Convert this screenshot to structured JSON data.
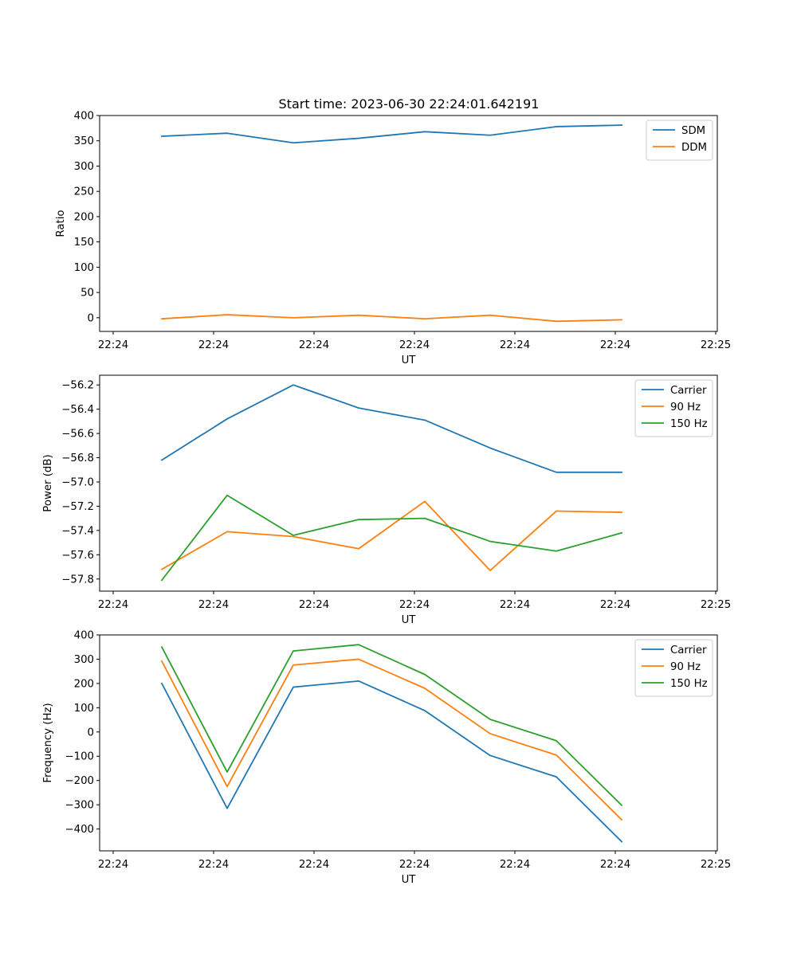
{
  "title": "Start time: 2023-06-30 22:24:01.642191",
  "chart_data": [
    {
      "type": "line",
      "ylabel": "Ratio",
      "xlabel": "UT",
      "x_tick_labels": [
        "22:24",
        "22:24",
        "22:24",
        "22:24",
        "22:24",
        "22:24",
        "22:24",
        "22:25"
      ],
      "ylim": [
        -27,
        400
      ],
      "yticks": [
        0,
        50,
        100,
        150,
        200,
        250,
        300,
        350,
        400
      ],
      "legend_position": "top-right",
      "series": [
        {
          "name": "SDM",
          "color": "#1f77b4",
          "values": [
            359,
            365,
            346,
            355,
            368,
            361,
            378,
            381
          ]
        },
        {
          "name": "DDM",
          "color": "#ff7f0e",
          "values": [
            -2,
            6,
            0,
            5,
            -2,
            5,
            -7,
            -4
          ]
        }
      ]
    },
    {
      "type": "line",
      "ylabel": "Power (dB)",
      "xlabel": "UT",
      "x_tick_labels": [
        "22:24",
        "22:24",
        "22:24",
        "22:24",
        "22:24",
        "22:24",
        "22:24",
        "22:25"
      ],
      "ylim": [
        -57.9,
        -56.12
      ],
      "yticks": [
        -57.8,
        -57.6,
        -57.4,
        -57.2,
        -57.0,
        -56.8,
        -56.6,
        -56.4,
        -56.2
      ],
      "ytick_labels": [
        "−57.8",
        "−57.6",
        "−57.4",
        "−57.2",
        "−57.0",
        "−56.8",
        "−56.6",
        "−56.4",
        "−56.2"
      ],
      "legend_position": "top-right",
      "series": [
        {
          "name": "Carrier",
          "color": "#1f77b4",
          "values": [
            -56.82,
            -56.48,
            -56.2,
            -56.39,
            -56.49,
            -56.72,
            -56.92,
            -56.92
          ]
        },
        {
          "name": "90 Hz",
          "color": "#ff7f0e",
          "values": [
            -57.72,
            -57.41,
            -57.45,
            -57.55,
            -57.16,
            -57.73,
            -57.24,
            -57.25
          ]
        },
        {
          "name": "150 Hz",
          "color": "#2ca02c",
          "values": [
            -57.81,
            -57.11,
            -57.44,
            -57.31,
            -57.3,
            -57.49,
            -57.57,
            -57.42
          ]
        }
      ]
    },
    {
      "type": "line",
      "ylabel": "Frequency (Hz)",
      "xlabel": "UT",
      "x_tick_labels": [
        "22:24",
        "22:24",
        "22:24",
        "22:24",
        "22:24",
        "22:24",
        "22:24",
        "22:25"
      ],
      "ylim": [
        -490,
        400
      ],
      "yticks": [
        -400,
        -300,
        -200,
        -100,
        0,
        100,
        200,
        300,
        400
      ],
      "ytick_labels": [
        "−400",
        "−300",
        "−200",
        "−100",
        "0",
        "100",
        "200",
        "300",
        "400"
      ],
      "legend_position": "top-right",
      "series": [
        {
          "name": "Carrier",
          "color": "#1f77b4",
          "values": [
            200,
            -315,
            185,
            210,
            88,
            -97,
            -185,
            -452
          ]
        },
        {
          "name": "90 Hz",
          "color": "#ff7f0e",
          "values": [
            292,
            -225,
            276,
            300,
            180,
            -7,
            -95,
            -362
          ]
        },
        {
          "name": "150 Hz",
          "color": "#2ca02c",
          "values": [
            350,
            -165,
            334,
            360,
            237,
            52,
            -36,
            -302
          ]
        }
      ]
    }
  ]
}
